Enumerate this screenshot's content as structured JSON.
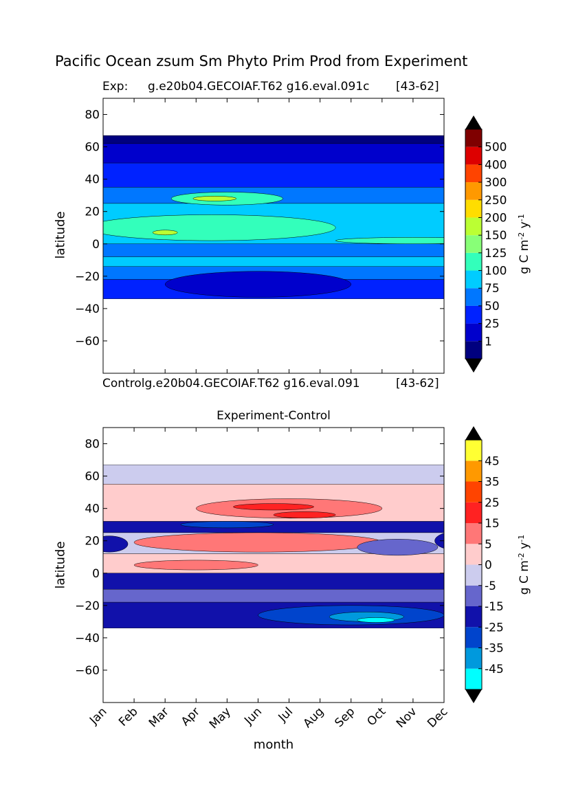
{
  "figure": {
    "suptitle": "Pacific Ocean zsum Sm Phyto Prim Prod from Experiment"
  },
  "chart_data": [
    {
      "type": "heatmap",
      "panel": "top",
      "title_left": "Exp:",
      "title_center": "g.e20b04.GECOIAF.T62 g16.eval.091c",
      "title_right": "[43-62]",
      "xlabel_bottom": "Controlg.e20b04.GECOIAF.T62 g16.eval.091",
      "xlabel_bottom_right": "[43-62]",
      "ylabel": "latitude",
      "ylim": [
        -80,
        90
      ],
      "yticks": [
        80,
        60,
        40,
        20,
        0,
        -20,
        -40,
        -60
      ],
      "data_lat_range": [
        -34,
        67
      ],
      "colorbar": {
        "label": "g C m$^{-2}$ y$^{-1}$",
        "levels": [
          1,
          25,
          50,
          75,
          100,
          125,
          150,
          200,
          250,
          300,
          400,
          500
        ],
        "tick_labels": [
          "1",
          "25",
          "50",
          "75",
          "100",
          "125",
          "150",
          "200",
          "250",
          "300",
          "400",
          "500"
        ],
        "colors": [
          "#00007f",
          "#0000cc",
          "#0022ff",
          "#0077ff",
          "#00ccff",
          "#33ffbb",
          "#88ff77",
          "#bbff33",
          "#ffdd00",
          "#ff9900",
          "#ff4400",
          "#dd0000",
          "#7f0000"
        ],
        "under_color": "#000000",
        "over_color": "#000000"
      },
      "bands": [
        {
          "lat": [
            62,
            67
          ],
          "level": 0
        },
        {
          "lat": [
            50,
            62
          ],
          "level": 1
        },
        {
          "lat": [
            35,
            50
          ],
          "level": 2
        },
        {
          "lat": [
            25,
            35
          ],
          "level": 3
        },
        {
          "lat": [
            0,
            25
          ],
          "level": 4
        },
        {
          "lat": [
            -8,
            0
          ],
          "level": 3
        },
        {
          "lat": [
            -14,
            -8
          ],
          "level": 4
        },
        {
          "lat": [
            -22,
            -14
          ],
          "level": 3
        },
        {
          "lat": [
            -34,
            -22
          ],
          "level": 2
        }
      ],
      "blobs": [
        {
          "month": 4,
          "lat": 28,
          "rx": 1.8,
          "ry": 4,
          "level": 5
        },
        {
          "month": 3.6,
          "lat": 28,
          "rx": 0.7,
          "ry": 1.5,
          "level": 7
        },
        {
          "month": 3.5,
          "lat": 10,
          "rx": 4,
          "ry": 8,
          "level": 5
        },
        {
          "month": 2.0,
          "lat": 7,
          "rx": 0.4,
          "ry": 1.5,
          "level": 7
        },
        {
          "month": 10,
          "lat": 2,
          "rx": 2.5,
          "ry": 2,
          "level": 5
        },
        {
          "month": 5,
          "lat": -25,
          "rx": 3,
          "ry": 8,
          "level": 1
        }
      ]
    },
    {
      "type": "heatmap",
      "panel": "bottom",
      "title": "Experiment-Control",
      "xlabel": "month",
      "ylabel": "latitude",
      "categories": [
        "Jan",
        "Feb",
        "Mar",
        "Apr",
        "May",
        "Jun",
        "Jul",
        "Aug",
        "Sep",
        "Oct",
        "Nov",
        "Dec"
      ],
      "ylim": [
        -80,
        90
      ],
      "yticks": [
        80,
        60,
        40,
        20,
        0,
        -20,
        -40,
        -60
      ],
      "data_lat_range": [
        -34,
        67
      ],
      "colorbar": {
        "label": "g C m$^{-2}$ y$^{-1}$",
        "levels": [
          -45,
          -35,
          -25,
          -15,
          -5,
          0,
          5,
          15,
          25,
          35,
          45
        ],
        "tick_labels": [
          "-45",
          "-35",
          "-25",
          "-15",
          "-5",
          "0",
          "5",
          "15",
          "25",
          "35",
          "45"
        ],
        "colors": [
          "#00ffff",
          "#0099dd",
          "#0044cc",
          "#1111aa",
          "#6666cc",
          "#ccccee",
          "#ffcccc",
          "#ff7777",
          "#ff2222",
          "#ff4400",
          "#ff9900",
          "#ffff33"
        ],
        "under_color": "#000000",
        "over_color": "#000000"
      },
      "bands": [
        {
          "lat": [
            55,
            67
          ],
          "level": 5
        },
        {
          "lat": [
            32,
            55
          ],
          "level": 6
        },
        {
          "lat": [
            25,
            32
          ],
          "level": 3
        },
        {
          "lat": [
            12,
            25
          ],
          "level": 5
        },
        {
          "lat": [
            0,
            12
          ],
          "level": 6
        },
        {
          "lat": [
            -10,
            0
          ],
          "level": 3
        },
        {
          "lat": [
            -18,
            -10
          ],
          "level": 4
        },
        {
          "lat": [
            -34,
            -18
          ],
          "level": 3
        }
      ],
      "blobs": [
        {
          "month": 6,
          "lat": 40,
          "rx": 3,
          "ry": 6,
          "level": 7
        },
        {
          "month": 5.5,
          "lat": 41,
          "rx": 1.3,
          "ry": 2,
          "level": 8
        },
        {
          "month": 6.5,
          "lat": 36,
          "rx": 1,
          "ry": 2,
          "level": 8
        },
        {
          "month": 5,
          "lat": 19,
          "rx": 4,
          "ry": 6,
          "level": 7
        },
        {
          "month": 3,
          "lat": 5,
          "rx": 2,
          "ry": 3,
          "level": 7
        },
        {
          "month": 4,
          "lat": 30,
          "rx": 1.5,
          "ry": 2,
          "level": 2
        },
        {
          "month": 8,
          "lat": -26,
          "rx": 3,
          "ry": 6,
          "level": 2
        },
        {
          "month": 8.5,
          "lat": -27,
          "rx": 1.2,
          "ry": 3,
          "level": 1
        },
        {
          "month": 8.8,
          "lat": -29,
          "rx": 0.6,
          "ry": 1.5,
          "level": 0
        },
        {
          "month": 9.5,
          "lat": 16,
          "rx": 1.3,
          "ry": 5,
          "level": 4
        },
        {
          "month": 11.5,
          "lat": 20,
          "rx": 0.8,
          "ry": 6,
          "level": 3
        },
        {
          "month": 0.2,
          "lat": 18,
          "rx": 0.6,
          "ry": 5,
          "level": 3
        }
      ]
    }
  ]
}
